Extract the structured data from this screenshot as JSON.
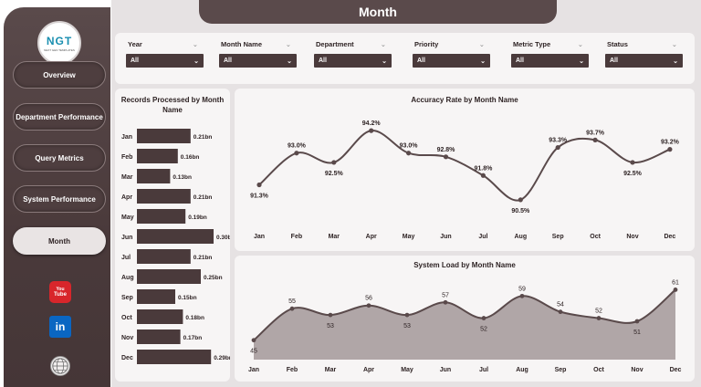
{
  "header": {
    "title": "Month"
  },
  "logo": {
    "text": "NGT",
    "sub": "NEXT GEN TEMPLATES"
  },
  "sidebar": {
    "items": [
      {
        "label": "Overview",
        "active": false
      },
      {
        "label": "Department Performance",
        "active": false
      },
      {
        "label": "Query Metrics",
        "active": false
      },
      {
        "label": "System Performance",
        "active": false
      },
      {
        "label": "Month",
        "active": true
      }
    ],
    "social": [
      "youtube-icon",
      "linkedin-icon",
      "globe-icon"
    ]
  },
  "filters": [
    {
      "label": "Year",
      "value": "All"
    },
    {
      "label": "Month Name",
      "value": "All"
    },
    {
      "label": "Department",
      "value": "All"
    },
    {
      "label": "Priority",
      "value": "All"
    },
    {
      "label": "Metric Type",
      "value": "All"
    },
    {
      "label": "Status",
      "value": "All"
    }
  ],
  "chart_data": [
    {
      "type": "bar",
      "orientation": "horizontal",
      "title": "Records Processed by Month Name",
      "categories": [
        "Jan",
        "Feb",
        "Mar",
        "Apr",
        "May",
        "Jun",
        "Jul",
        "Aug",
        "Sep",
        "Oct",
        "Nov",
        "Dec"
      ],
      "values": [
        0.21,
        0.16,
        0.13,
        0.21,
        0.19,
        0.3,
        0.21,
        0.25,
        0.15,
        0.18,
        0.17,
        0.29
      ],
      "labels": [
        "0.21bn",
        "0.16bn",
        "0.13bn",
        "0.21bn",
        "0.19bn",
        "0.30bn",
        "0.21bn",
        "0.25bn",
        "0.15bn",
        "0.18bn",
        "0.17bn",
        "0.29bn"
      ],
      "color": "#4a3a3b"
    },
    {
      "type": "line",
      "title": "Accuracy Rate by Month Name",
      "categories": [
        "Jan",
        "Feb",
        "Mar",
        "Apr",
        "May",
        "Jun",
        "Jul",
        "Aug",
        "Sep",
        "Oct",
        "Nov",
        "Dec"
      ],
      "values": [
        91.3,
        93.0,
        92.5,
        94.2,
        93.0,
        92.8,
        91.8,
        90.5,
        93.3,
        93.7,
        92.5,
        93.2
      ],
      "labels": [
        "91.3%",
        "93.0%",
        "92.5%",
        "94.2%",
        "93.0%",
        "92.8%",
        "91.8%",
        "90.5%",
        "93.3%",
        "93.7%",
        "92.5%",
        "93.2%"
      ],
      "ylim": [
        90.3,
        94.5
      ],
      "color": "#5a4a4b"
    },
    {
      "type": "area",
      "title": "System Load by Month Name",
      "categories": [
        "Jan",
        "Feb",
        "Mar",
        "Apr",
        "May",
        "Jun",
        "Jul",
        "Aug",
        "Sep",
        "Oct",
        "Nov",
        "Dec"
      ],
      "values": [
        45,
        55,
        53,
        56,
        53,
        57,
        52,
        59,
        54,
        52,
        51,
        61
      ],
      "labels": [
        "45",
        "55",
        "53",
        "56",
        "53",
        "57",
        "52",
        "59",
        "54",
        "52",
        "51",
        "61"
      ],
      "ylim": [
        40,
        62
      ],
      "color": "#5a4a4b",
      "fill": "#b0a6a7"
    }
  ]
}
